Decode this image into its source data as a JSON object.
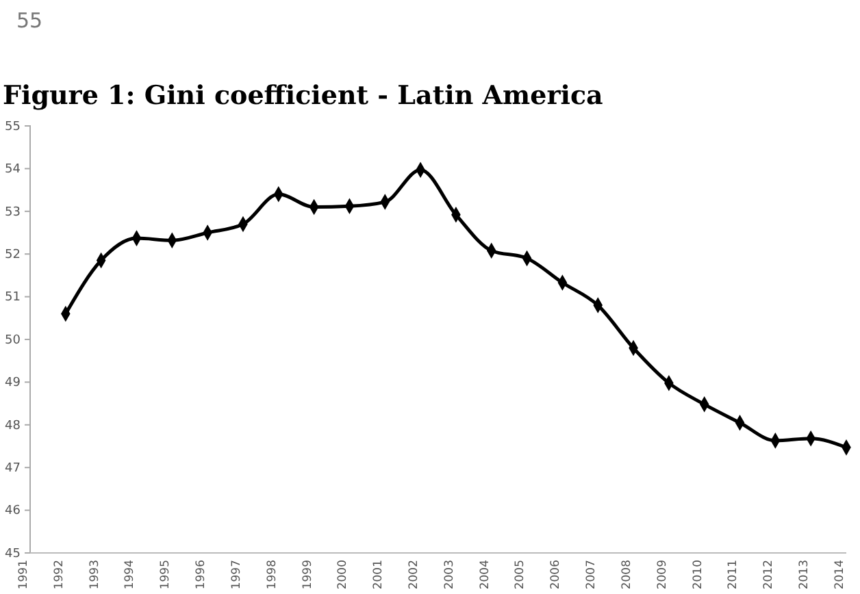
{
  "chart_data": {
    "type": "line",
    "title": "Figure 1: Gini coefficient - Latin America",
    "annotations": [
      "55"
    ],
    "categories": [
      "1991",
      "1992",
      "1993",
      "1994",
      "1995",
      "1996",
      "1997",
      "1998",
      "1999",
      "2000",
      "2001",
      "2002",
      "2003",
      "2004",
      "2005",
      "2006",
      "2007",
      "2008",
      "2009",
      "2010",
      "2011",
      "2012",
      "2013",
      "2014"
    ],
    "series": [
      {
        "color": "#000000",
        "values": [
          null,
          50.6,
          51.85,
          52.37,
          52.32,
          52.5,
          52.7,
          53.4,
          53.1,
          53.12,
          53.22,
          53.97,
          52.92,
          52.08,
          51.9,
          51.33,
          50.8,
          49.8,
          48.98,
          48.48,
          48.05,
          47.63,
          47.68,
          47.47
        ]
      }
    ],
    "ylim": [
      45,
      55
    ],
    "yticks": [
      45,
      46,
      47,
      48,
      49,
      50,
      51,
      52,
      53,
      54,
      55
    ],
    "marker": "diamond",
    "line_style": "solid",
    "grid": false
  }
}
